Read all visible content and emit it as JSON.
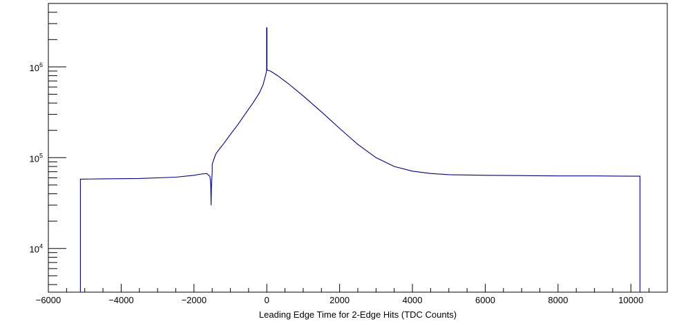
{
  "chart_data": {
    "type": "line",
    "title": "",
    "xlabel": "Leading Edge Time for 2-Edge Hits (TDC Counts)",
    "ylabel": "",
    "xlim": [
      -6000,
      11000
    ],
    "ylim": [
      3300,
      5000000
    ],
    "yscale": "log",
    "grid": false,
    "legend": "none",
    "line_color": "#00007f",
    "x_ticks": [
      {
        "value": -6000,
        "label": "−6000"
      },
      {
        "value": -4000,
        "label": "−4000"
      },
      {
        "value": -2000,
        "label": "−2000"
      },
      {
        "value": 0,
        "label": "0"
      },
      {
        "value": 2000,
        "label": "2000"
      },
      {
        "value": 4000,
        "label": "4000"
      },
      {
        "value": 6000,
        "label": "6000"
      },
      {
        "value": 8000,
        "label": "8000"
      },
      {
        "value": 10000,
        "label": "10000"
      }
    ],
    "y_ticks": [
      {
        "value": 10000,
        "base": "10",
        "exp": "4"
      },
      {
        "value": 100000,
        "base": "10",
        "exp": "5"
      },
      {
        "value": 1000000,
        "base": "10",
        "exp": "6"
      }
    ],
    "series": [
      {
        "x": [
          -5120,
          -5120,
          -4500,
          -3500,
          -2500,
          -2000,
          -1800,
          -1650,
          -1560,
          -1540,
          -1530,
          -1520,
          -1500,
          -1500,
          -1400,
          -1300,
          -1200,
          -1000,
          -800,
          -600,
          -400,
          -200,
          -100,
          -20,
          -5,
          -5,
          5,
          5,
          20,
          100,
          300,
          600,
          1000,
          1500,
          2000,
          2500,
          3000,
          3500,
          4000,
          4500,
          5000,
          6000,
          7000,
          8000,
          9000,
          10000,
          10250,
          10250
        ],
        "y": [
          3300,
          58000,
          58500,
          59000,
          61000,
          64000,
          66000,
          67000,
          62000,
          50000,
          30000,
          48000,
          70000,
          85000,
          110000,
          125000,
          140000,
          180000,
          230000,
          300000,
          390000,
          520000,
          640000,
          850000,
          920000,
          2700000,
          2700000,
          940000,
          920000,
          900000,
          800000,
          650000,
          480000,
          320000,
          210000,
          140000,
          100000,
          80000,
          71000,
          67000,
          65000,
          64000,
          63500,
          63000,
          63000,
          62500,
          62500,
          3300
        ]
      }
    ]
  }
}
